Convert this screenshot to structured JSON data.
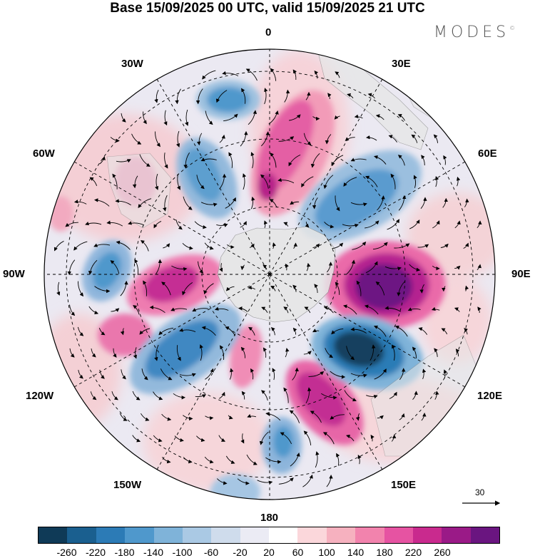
{
  "title": "Base 15/09/2025 00 UTC, valid 15/09/2025 21 UTC",
  "brand": "MODES",
  "brand_mark": "©",
  "longitude_labels": {
    "top": "0",
    "bottom": "180",
    "right": "90E",
    "left": "90W",
    "e30": "30E",
    "e60": "60E",
    "e120": "120E",
    "e150": "150E",
    "w30": "30W",
    "w60": "60W",
    "w120": "120W",
    "w150": "150W"
  },
  "vector_scale": {
    "value": "30"
  },
  "colorbar": {
    "colors": [
      "#0f3a57",
      "#1a5f8f",
      "#2c7bb6",
      "#4f98cc",
      "#7fb3d9",
      "#aac9e4",
      "#cfdcec",
      "#ebebf4",
      "#ffffff",
      "#fbd7db",
      "#f6b1bf",
      "#f283ad",
      "#e653a2",
      "#c92a8e",
      "#9a1a87",
      "#6a1580"
    ],
    "ticks": [
      "-260",
      "-220",
      "-180",
      "-140",
      "-100",
      "-60",
      "-20",
      "20",
      "60",
      "100",
      "140",
      "180",
      "220",
      "260"
    ]
  }
}
